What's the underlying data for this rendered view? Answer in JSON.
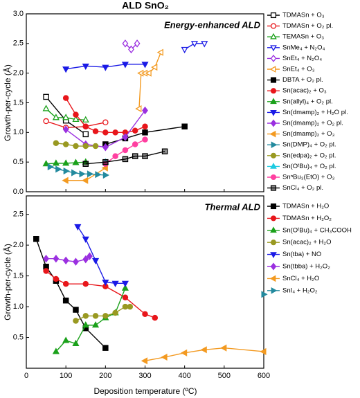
{
  "chart_data": [
    {
      "type": "line",
      "title": "ALD SnO₂",
      "annotation": "Energy-enhanced ALD",
      "y_label": "Growth-per-cycle (Å)",
      "xlim": [
        0,
        600
      ],
      "ylim": [
        0,
        3
      ],
      "yticks": [
        {
          "value": 0,
          "label": "0.0"
        },
        0.5,
        {
          "value": 1,
          "label": "1.0"
        },
        1.5,
        {
          "value": 2,
          "label": "2.0"
        },
        2.5,
        {
          "value": 3,
          "label": "3.0"
        }
      ],
      "series": [
        {
          "name": "TDMASn + O₃",
          "color": "#000000",
          "marker": "square",
          "fill": "open",
          "x": [
            50,
            100,
            150
          ],
          "values": [
            1.6,
            1.2,
            0.97
          ]
        },
        {
          "name": "TDMASn + O₂ pl.",
          "color": "#e8161b",
          "marker": "circle",
          "fill": "open",
          "x": [
            50,
            100,
            150,
            200
          ],
          "values": [
            1.19,
            1.08,
            1.1,
            1.17
          ]
        },
        {
          "name": "TEMASn + O₃",
          "color": "#1ba11b",
          "marker": "triangle",
          "fill": "open",
          "x": [
            50,
            75,
            100,
            125,
            150
          ],
          "values": [
            1.4,
            1.25,
            1.25,
            1.22,
            1.21
          ]
        },
        {
          "name": "SnMe₄ + N₂O₄",
          "color": "#1a1ae6",
          "marker": "triangle-down",
          "fill": "open",
          "x": [
            400,
            425,
            450
          ],
          "values": [
            2.4,
            2.5,
            2.5
          ]
        },
        {
          "name": "SnEt₄ + N₂O₄",
          "color": "#9b30e0",
          "marker": "diamond",
          "fill": "open",
          "x": [
            250,
            265,
            280
          ],
          "values": [
            2.5,
            2.4,
            2.5
          ]
        },
        {
          "name": "SnEt₄ + O₃",
          "color": "#f39a21",
          "marker": "triangle-left",
          "fill": "open",
          "x": [
            285,
            290,
            300,
            310,
            325,
            340
          ],
          "values": [
            1.4,
            2.0,
            2.0,
            2.0,
            2.1,
            2.35
          ]
        },
        {
          "name": "DBTA + O₂ pl.",
          "color": "#000000",
          "marker": "square",
          "fill": "filled",
          "x": [
            200,
            250,
            300,
            400
          ],
          "values": [
            0.8,
            0.9,
            1.0,
            1.1
          ]
        },
        {
          "name": "Sn(acac)₂ + O₃",
          "color": "#e8161b",
          "marker": "circle",
          "fill": "filled",
          "x": [
            100,
            125,
            150,
            175,
            200,
            225,
            250,
            275,
            300
          ],
          "values": [
            1.58,
            1.3,
            1.1,
            1.02,
            1.0,
            1.0,
            1.0,
            1.03,
            1.1
          ]
        },
        {
          "name": "Sn(allyl)₄ + O₂ pl.",
          "color": "#1ba11b",
          "marker": "triangle",
          "fill": "filled",
          "x": [
            50,
            75,
            100,
            125,
            150
          ],
          "values": [
            0.47,
            0.48,
            0.48,
            0.49,
            0.5
          ]
        },
        {
          "name": "Sn(dmamp)₂ + H₂O pl.",
          "color": "#1a1ae6",
          "marker": "triangle-down",
          "fill": "filled",
          "x": [
            100,
            150,
            200,
            250,
            300
          ],
          "values": [
            2.07,
            2.12,
            2.1,
            2.15,
            2.15
          ]
        },
        {
          "name": "Sn(dmamp)₂ + O₂ pl.",
          "color": "#9b30e0",
          "marker": "diamond",
          "fill": "filled",
          "x": [
            100,
            150,
            200,
            250,
            300
          ],
          "values": [
            1.05,
            0.8,
            0.75,
            0.92,
            1.37
          ]
        },
        {
          "name": "Sn(dmamp)₂ + O₃",
          "color": "#f39a21",
          "marker": "triangle-left",
          "fill": "filled",
          "x": [
            100,
            150,
            200
          ],
          "values": [
            0.19,
            0.19,
            0.4
          ]
        },
        {
          "name": "Sn(DMP)₄ + O₂ pl.",
          "color": "#238a9e",
          "marker": "triangle-right",
          "fill": "filled",
          "x": [
            60,
            80,
            100,
            120,
            140,
            160,
            180,
            200
          ],
          "values": [
            0.42,
            0.38,
            0.35,
            0.32,
            0.3,
            0.3,
            0.29,
            0.28
          ]
        },
        {
          "name": "Sn(edpa)₂ + O₂ pl.",
          "color": "#999921",
          "marker": "circle",
          "fill": "filled",
          "x": [
            75,
            100,
            125,
            150,
            175
          ],
          "values": [
            0.82,
            0.8,
            0.77,
            0.77,
            0.77
          ]
        },
        {
          "name": "Sn(OᵗBu)₄ + O₂ pl.",
          "color": "#1ecbe1",
          "marker": "triangle",
          "fill": "filled",
          "x": [
            200
          ],
          "values": [
            0.5
          ]
        },
        {
          "name": "SnⁿBu₃(EtO) + O₃",
          "color": "#ff3fa0",
          "marker": "circle",
          "fill": "filled",
          "x": [
            200,
            225,
            250,
            275,
            300
          ],
          "values": [
            0.47,
            0.6,
            0.7,
            0.8,
            0.88
          ]
        },
        {
          "name": "SnCl₄ + O₂ pl.",
          "color": "#000000",
          "marker": "square",
          "fill": "half",
          "x": [
            150,
            200,
            250,
            275,
            300,
            350
          ],
          "values": [
            0.47,
            0.5,
            0.55,
            0.6,
            0.6,
            0.68
          ]
        }
      ]
    },
    {
      "type": "line",
      "annotation": "Thermal ALD",
      "y_label": "Growth-per-cycle (Å)",
      "x_label": "Deposition temperature (ºC)",
      "xlim": [
        0,
        600
      ],
      "ylim": [
        0,
        2.8
      ],
      "xticks": [
        0,
        100,
        200,
        300,
        400,
        500,
        600
      ],
      "yticks": [
        0.5,
        {
          "value": 1,
          "label": "1.0"
        },
        1.5,
        {
          "value": 2,
          "label": "2.0"
        },
        2.5
      ],
      "series": [
        {
          "name": "TDMASn + H₂O",
          "color": "#000000",
          "marker": "square",
          "fill": "filled",
          "x": [
            25,
            50,
            75,
            100,
            125,
            150,
            200
          ],
          "values": [
            2.1,
            1.65,
            1.42,
            1.1,
            0.95,
            0.65,
            0.33
          ]
        },
        {
          "name": "TDMASn + H₂O₂",
          "color": "#e8161b",
          "marker": "circle",
          "fill": "filled",
          "x": [
            50,
            75,
            100,
            150,
            200,
            250,
            300,
            325
          ],
          "values": [
            1.58,
            1.45,
            1.37,
            1.37,
            1.33,
            1.15,
            0.88,
            0.82
          ]
        },
        {
          "name": "Sn(OᵗBu)₄ + CH₃COOH",
          "color": "#1ba11b",
          "marker": "triangle",
          "fill": "filled",
          "x": [
            75,
            100,
            125,
            150,
            175,
            200,
            225,
            250
          ],
          "values": [
            0.27,
            0.45,
            0.4,
            0.7,
            0.7,
            0.82,
            0.9,
            1.3
          ]
        },
        {
          "name": "Sn(acac)₂ + H₂O",
          "color": "#999921",
          "marker": "circle",
          "fill": "filled",
          "x": [
            125,
            150,
            175,
            200,
            225,
            250,
            262
          ],
          "values": [
            0.77,
            0.85,
            0.85,
            0.85,
            0.9,
            1.0,
            1.0
          ]
        },
        {
          "name": "Sn(tba) + NO",
          "color": "#1a1ae6",
          "marker": "triangle-down",
          "fill": "filled",
          "x": [
            130,
            150,
            175,
            200,
            225,
            250
          ],
          "values": [
            2.3,
            2.1,
            1.75,
            1.4,
            1.38,
            1.38
          ]
        },
        {
          "name": "Sn(tbba) + H₂O₂",
          "color": "#9b30e0",
          "marker": "diamond",
          "fill": "filled",
          "x": [
            50,
            75,
            100,
            125,
            150,
            160
          ],
          "values": [
            1.78,
            1.78,
            1.75,
            1.73,
            1.77,
            1.82
          ]
        },
        {
          "name": "SnCl₄ + H₂O",
          "color": "#f39a21",
          "marker": "triangle-left",
          "fill": "filled",
          "x": [
            300,
            350,
            400,
            450,
            500,
            600
          ],
          "values": [
            0.12,
            0.18,
            0.25,
            0.3,
            0.33,
            0.27
          ]
        },
        {
          "name": "SnI₄ + H₂O₂",
          "color": "#238a9e",
          "marker": "triangle-right",
          "fill": "filled",
          "x": [
            600
          ],
          "values": [
            1.2
          ]
        }
      ]
    }
  ]
}
